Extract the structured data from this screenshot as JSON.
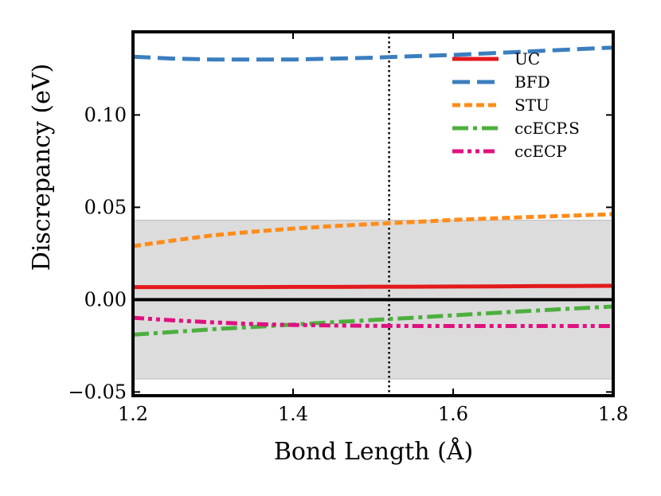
{
  "chart_data": {
    "type": "line",
    "title": "",
    "xlabel": "Bond Length (Å)",
    "ylabel": "Discrepancy (eV)",
    "xlim": [
      1.2,
      1.8
    ],
    "ylim": [
      -0.052,
      0.145
    ],
    "xticks": [
      1.2,
      1.4,
      1.6,
      1.8
    ],
    "xtick_labels": [
      "1.2",
      "1.4",
      "1.6",
      "1.8"
    ],
    "yticks": [
      -0.05,
      0.0,
      0.05,
      0.1
    ],
    "ytick_labels": [
      "−0.05",
      "0.00",
      "0.05",
      "0.10"
    ],
    "shaded_band": [
      -0.043,
      0.043
    ],
    "shaded_color": "#dcdcdc",
    "zero_line": 0.0,
    "vertical_line_x": 1.52,
    "grid": false,
    "legend_position": "top-right",
    "x": [
      1.2,
      1.25,
      1.3,
      1.35,
      1.4,
      1.45,
      1.5,
      1.55,
      1.6,
      1.65,
      1.7,
      1.75,
      1.8
    ],
    "series": [
      {
        "name": "UC",
        "color": "#e31a1c",
        "style": "solid",
        "values": [
          0.0068,
          0.0068,
          0.0068,
          0.0068,
          0.0069,
          0.0069,
          0.007,
          0.007,
          0.0071,
          0.0072,
          0.0073,
          0.0074,
          0.0075
        ]
      },
      {
        "name": "BFD",
        "color": "#3a7ebf",
        "style": "longdash",
        "values": [
          0.1315,
          0.1305,
          0.13,
          0.13,
          0.13,
          0.1305,
          0.131,
          0.1318,
          0.1325,
          0.1335,
          0.1345,
          0.1355,
          0.1365
        ]
      },
      {
        "name": "STU",
        "color": "#ff8c1a",
        "style": "dash",
        "values": [
          0.029,
          0.032,
          0.0348,
          0.0368,
          0.0385,
          0.0398,
          0.041,
          0.042,
          0.0432,
          0.044,
          0.0448,
          0.0455,
          0.0463
        ]
      },
      {
        "name": "ccECP.S",
        "color": "#4caf3e",
        "style": "dashdot",
        "values": [
          -0.019,
          -0.0175,
          -0.016,
          -0.0148,
          -0.0135,
          -0.0122,
          -0.011,
          -0.0098,
          -0.0085,
          -0.0072,
          -0.006,
          -0.0048,
          -0.0037
        ]
      },
      {
        "name": "ccECP",
        "color": "#e0117f",
        "style": "dashdotdot",
        "values": [
          -0.0098,
          -0.0112,
          -0.0123,
          -0.0132,
          -0.0137,
          -0.014,
          -0.0142,
          -0.0143,
          -0.0143,
          -0.0143,
          -0.0143,
          -0.0143,
          -0.0143
        ]
      }
    ]
  }
}
